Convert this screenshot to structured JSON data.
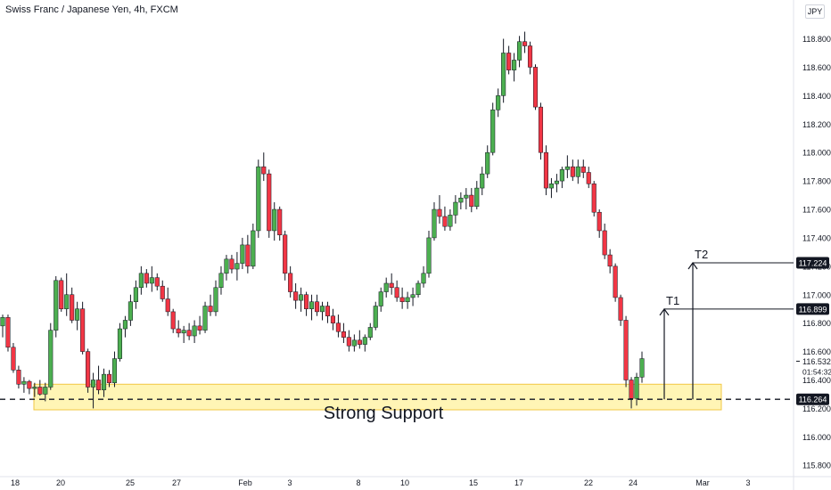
{
  "chart_data": {
    "type": "candlestick",
    "title": "Swiss Franc / Japanese Yen, 4h, FXCM",
    "currency": "JPY",
    "ylim": [
      115.72,
      118.96
    ],
    "yticks": [
      "118.800",
      "118.600",
      "118.400",
      "118.200",
      "118.000",
      "117.800",
      "117.600",
      "117.400",
      "117.200",
      "117.000",
      "116.800",
      "116.600",
      "116.400",
      "116.200",
      "116.000",
      "115.800"
    ],
    "xticks": [
      "18",
      "20",
      "25",
      "27",
      "Feb",
      "3",
      "8",
      "10",
      "15",
      "17",
      "22",
      "24",
      "Mar",
      "3"
    ],
    "price_labels": [
      {
        "text": "117.224",
        "value": 117.224
      },
      {
        "text": "116.899",
        "value": 116.899
      },
      {
        "text": "116.264",
        "value": 116.264
      }
    ],
    "current_price": {
      "text": "116.532",
      "value": 116.532
    },
    "countdown": "01:54:32",
    "support": {
      "label": "Strong Support",
      "low": 116.19,
      "high": 116.37,
      "level": 116.264
    },
    "targets": [
      {
        "label": "T1",
        "value": 116.899
      },
      {
        "label": "T2",
        "value": 117.224
      }
    ],
    "candles": [
      [
        116.78,
        116.86,
        116.7,
        116.84
      ],
      [
        116.84,
        116.86,
        116.6,
        116.63
      ],
      [
        116.63,
        116.66,
        116.45,
        116.47
      ],
      [
        116.47,
        116.5,
        116.34,
        116.37
      ],
      [
        116.37,
        116.42,
        116.31,
        116.39
      ],
      [
        116.39,
        116.4,
        116.3,
        116.34
      ],
      [
        116.34,
        116.38,
        116.28,
        116.35
      ],
      [
        116.35,
        116.4,
        116.29,
        116.3
      ],
      [
        116.3,
        116.38,
        116.25,
        116.35
      ],
      [
        116.35,
        116.8,
        116.33,
        116.75
      ],
      [
        116.75,
        117.13,
        116.7,
        117.1
      ],
      [
        117.1,
        117.12,
        116.88,
        116.9
      ],
      [
        116.9,
        117.15,
        116.85,
        117.0
      ],
      [
        117.0,
        117.05,
        116.8,
        116.82
      ],
      [
        116.82,
        116.95,
        116.75,
        116.9
      ],
      [
        116.9,
        116.95,
        116.58,
        116.6
      ],
      [
        116.6,
        116.62,
        116.31,
        116.35
      ],
      [
        116.35,
        116.45,
        116.2,
        116.4
      ],
      [
        116.4,
        116.5,
        116.3,
        116.33
      ],
      [
        116.33,
        116.48,
        116.28,
        116.44
      ],
      [
        116.44,
        116.47,
        116.35,
        116.38
      ],
      [
        116.38,
        116.6,
        116.35,
        116.55
      ],
      [
        116.55,
        116.8,
        116.53,
        116.76
      ],
      [
        116.76,
        116.85,
        116.7,
        116.82
      ],
      [
        116.82,
        117.0,
        116.78,
        116.95
      ],
      [
        116.95,
        117.1,
        116.9,
        117.05
      ],
      [
        117.05,
        117.2,
        117.0,
        117.15
      ],
      [
        117.15,
        117.18,
        117.05,
        117.08
      ],
      [
        117.08,
        117.2,
        117.02,
        117.12
      ],
      [
        117.12,
        117.15,
        117.03,
        117.06
      ],
      [
        117.06,
        117.1,
        116.95,
        116.97
      ],
      [
        116.97,
        117.05,
        116.85,
        116.88
      ],
      [
        116.88,
        116.9,
        116.73,
        116.76
      ],
      [
        116.76,
        116.82,
        116.7,
        116.73
      ],
      [
        116.73,
        116.78,
        116.66,
        116.75
      ],
      [
        116.75,
        116.8,
        116.68,
        116.71
      ],
      [
        116.71,
        116.82,
        116.66,
        116.78
      ],
      [
        116.78,
        116.85,
        116.72,
        116.75
      ],
      [
        116.75,
        116.95,
        116.73,
        116.92
      ],
      [
        116.92,
        117.0,
        116.85,
        116.88
      ],
      [
        116.88,
        117.1,
        116.85,
        117.05
      ],
      [
        117.05,
        117.2,
        117.0,
        117.15
      ],
      [
        117.15,
        117.28,
        117.1,
        117.25
      ],
      [
        117.25,
        117.28,
        117.15,
        117.18
      ],
      [
        117.18,
        117.3,
        117.1,
        117.22
      ],
      [
        117.22,
        117.4,
        117.18,
        117.35
      ],
      [
        117.35,
        117.42,
        117.15,
        117.2
      ],
      [
        117.2,
        117.5,
        117.18,
        117.45
      ],
      [
        117.45,
        117.95,
        117.4,
        117.9
      ],
      [
        117.9,
        118.0,
        117.8,
        117.85
      ],
      [
        117.85,
        117.88,
        117.4,
        117.45
      ],
      [
        117.45,
        117.65,
        117.38,
        117.6
      ],
      [
        117.6,
        117.62,
        117.38,
        117.42
      ],
      [
        117.42,
        117.45,
        117.1,
        117.15
      ],
      [
        117.15,
        117.2,
        116.98,
        117.02
      ],
      [
        117.02,
        117.08,
        116.9,
        116.96
      ],
      [
        116.96,
        117.05,
        116.88,
        117.0
      ],
      [
        117.0,
        117.02,
        116.85,
        116.9
      ],
      [
        116.9,
        117.0,
        116.82,
        116.95
      ],
      [
        116.95,
        117.0,
        116.85,
        116.88
      ],
      [
        116.88,
        116.95,
        116.82,
        116.92
      ],
      [
        116.92,
        116.95,
        116.8,
        116.85
      ],
      [
        116.85,
        116.9,
        116.75,
        116.8
      ],
      [
        116.8,
        116.86,
        116.7,
        116.74
      ],
      [
        116.74,
        116.8,
        116.66,
        116.7
      ],
      [
        116.7,
        116.75,
        116.6,
        116.64
      ],
      [
        116.64,
        116.72,
        116.6,
        116.68
      ],
      [
        116.68,
        116.75,
        116.62,
        116.65
      ],
      [
        116.65,
        116.72,
        116.6,
        116.7
      ],
      [
        116.7,
        116.8,
        116.68,
        116.77
      ],
      [
        116.77,
        116.95,
        116.75,
        116.92
      ],
      [
        116.92,
        117.05,
        116.88,
        117.02
      ],
      [
        117.02,
        117.12,
        116.98,
        117.08
      ],
      [
        117.08,
        117.15,
        117.0,
        117.05
      ],
      [
        117.05,
        117.1,
        116.95,
        116.98
      ],
      [
        116.98,
        117.05,
        116.9,
        116.95
      ],
      [
        116.95,
        117.02,
        116.9,
        116.98
      ],
      [
        116.98,
        117.05,
        116.92,
        117.0
      ],
      [
        117.0,
        117.1,
        116.98,
        117.08
      ],
      [
        117.08,
        117.2,
        117.05,
        117.15
      ],
      [
        117.15,
        117.45,
        117.12,
        117.4
      ],
      [
        117.4,
        117.65,
        117.38,
        117.6
      ],
      [
        117.6,
        117.7,
        117.5,
        117.55
      ],
      [
        117.55,
        117.62,
        117.45,
        117.48
      ],
      [
        117.48,
        117.6,
        117.45,
        117.56
      ],
      [
        117.56,
        117.7,
        117.5,
        117.65
      ],
      [
        117.65,
        117.72,
        117.6,
        117.68
      ],
      [
        117.68,
        117.75,
        117.6,
        117.7
      ],
      [
        117.7,
        117.75,
        117.58,
        117.62
      ],
      [
        117.62,
        117.8,
        117.6,
        117.75
      ],
      [
        117.75,
        117.9,
        117.7,
        117.85
      ],
      [
        117.85,
        118.05,
        117.82,
        118.0
      ],
      [
        118.0,
        118.35,
        117.98,
        118.3
      ],
      [
        118.3,
        118.45,
        118.25,
        118.4
      ],
      [
        118.4,
        118.8,
        118.35,
        118.7
      ],
      [
        118.7,
        118.75,
        118.55,
        118.58
      ],
      [
        118.58,
        118.7,
        118.5,
        118.65
      ],
      [
        118.65,
        118.82,
        118.6,
        118.78
      ],
      [
        118.78,
        118.85,
        118.7,
        118.75
      ],
      [
        118.75,
        118.78,
        118.55,
        118.6
      ],
      [
        118.6,
        118.62,
        118.3,
        118.32
      ],
      [
        118.32,
        118.35,
        117.95,
        118.0
      ],
      [
        118.0,
        118.05,
        117.7,
        117.75
      ],
      [
        117.75,
        117.82,
        117.68,
        117.78
      ],
      [
        117.78,
        117.85,
        117.72,
        117.8
      ],
      [
        117.8,
        117.9,
        117.75,
        117.88
      ],
      [
        117.88,
        117.98,
        117.82,
        117.9
      ],
      [
        117.9,
        117.95,
        117.8,
        117.83
      ],
      [
        117.83,
        117.95,
        117.78,
        117.9
      ],
      [
        117.9,
        117.95,
        117.82,
        117.86
      ],
      [
        117.86,
        117.9,
        117.75,
        117.78
      ],
      [
        117.78,
        117.8,
        117.55,
        117.58
      ],
      [
        117.58,
        117.6,
        117.4,
        117.45
      ],
      [
        117.45,
        117.5,
        117.25,
        117.28
      ],
      [
        117.28,
        117.32,
        117.15,
        117.2
      ],
      [
        117.2,
        117.22,
        116.95,
        116.98
      ],
      [
        116.98,
        117.0,
        116.78,
        116.82
      ],
      [
        116.82,
        116.85,
        116.35,
        116.4
      ],
      [
        116.4,
        116.42,
        116.2,
        116.27
      ],
      [
        116.27,
        116.45,
        116.22,
        116.42
      ],
      [
        116.42,
        116.6,
        116.38,
        116.55
      ]
    ]
  }
}
